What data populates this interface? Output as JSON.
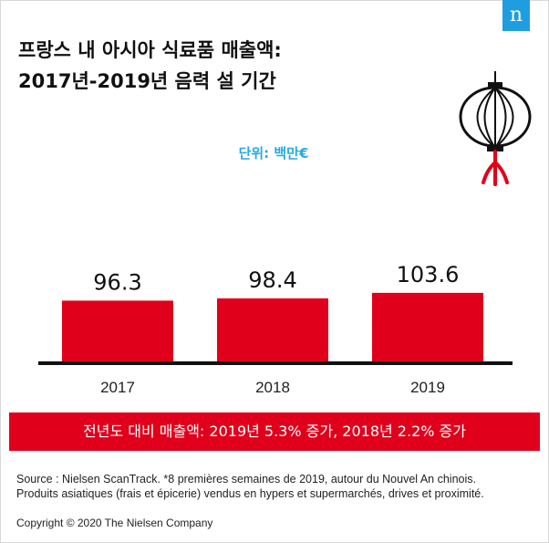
{
  "header": {
    "title_line1": "프랑스 내 아시아 식료품 매출액:",
    "title_line2": "2017년-2019년 음력 설 기간",
    "logo_letter": "n"
  },
  "unit_label": "단위: 백만€",
  "colors": {
    "bar": "#e0001b",
    "unit": "#29aae1",
    "logo": "#1e9ee0",
    "axis": "#111111"
  },
  "chart_data": {
    "type": "bar",
    "categories": [
      "2017",
      "2018",
      "2019"
    ],
    "values": [
      96.3,
      98.4,
      103.6
    ],
    "value_labels": [
      "96.3",
      "98.4",
      "103.6"
    ],
    "title": "프랑스 내 아시아 식료품 매출액: 2017년-2019년 음력 설 기간",
    "xlabel": "",
    "ylabel": "",
    "grid": false,
    "legend": "none"
  },
  "banner_text": "전년도 대비 매출액: 2019년 5.3% 증가, 2018년 2.2% 증가",
  "source_lines": [
    "Source : Nielsen ScanTrack. *8 premières semaines de 2019,  autour du Nouvel An chinois.",
    "Produits asiatiques (frais et épicerie) vendus en hypers et supermarchés, drives et proximité."
  ],
  "copyright": "Copyright © 2020 The Nielsen Company",
  "decoration": {
    "lantern_icon": "paper-lantern-icon"
  }
}
